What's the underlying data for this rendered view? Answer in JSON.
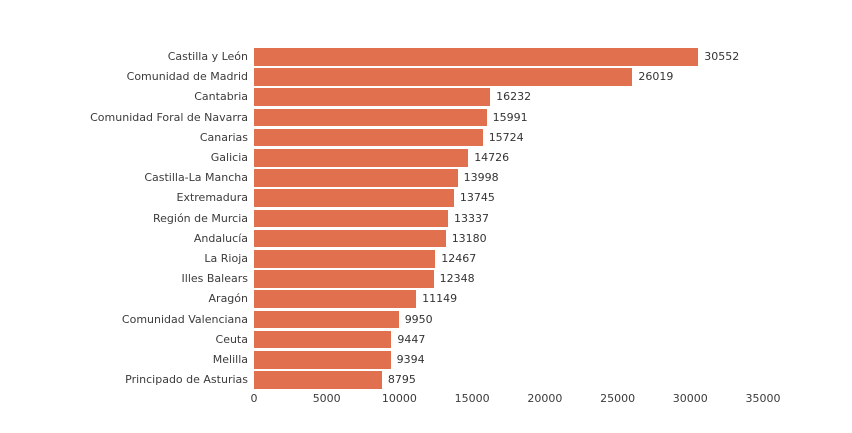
{
  "chart_data": {
    "type": "bar",
    "orientation": "horizontal",
    "title": "",
    "xlabel": "",
    "ylabel": "",
    "grid": false,
    "legend": false,
    "xlim": [
      0,
      35000
    ],
    "x_ticks": [
      "0",
      "5000",
      "10000",
      "15000",
      "20000",
      "25000",
      "30000",
      "35000"
    ],
    "x_tick_values": [
      0,
      5000,
      10000,
      15000,
      20000,
      25000,
      30000,
      35000
    ],
    "categories": [
      "Castilla y León",
      "Comunidad de Madrid",
      "Cantabria",
      "Comunidad Foral de Navarra",
      "Canarias",
      "Galicia",
      "Castilla-La Mancha",
      "Extremadura",
      "Región de Murcia",
      "Andalucía",
      "La Rioja",
      "Illes Balears",
      "Aragón",
      "Comunidad Valenciana",
      "Ceuta",
      "Melilla",
      "Principado de Asturias"
    ],
    "values": [
      30552,
      26019,
      16232,
      15991,
      15724,
      14726,
      13998,
      13745,
      13337,
      13180,
      12467,
      12348,
      11149,
      9950,
      9447,
      9394,
      8795
    ],
    "value_labels": [
      "30552",
      "26019",
      "16232",
      "15991",
      "15724",
      "14726",
      "13998",
      "13745",
      "13337",
      "13180",
      "12467",
      "12348",
      "11149",
      "9950",
      "9447",
      "9394",
      "8795"
    ],
    "bar_color": "#e1714e",
    "label_color": "#3b3b3b",
    "background_color": "#ffffff"
  }
}
